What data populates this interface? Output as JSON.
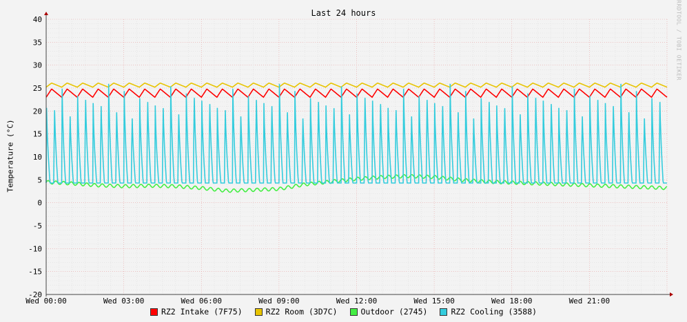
{
  "chart_data": {
    "type": "line",
    "title": "Last 24 hours",
    "ylabel": "Temperature (°C)",
    "xlabel": "",
    "watermark": "RRDTOOL / TOBI OETIKER",
    "ylim": [
      -20,
      40
    ],
    "yticks": [
      40,
      35,
      30,
      25,
      20,
      15,
      10,
      5,
      0,
      -5,
      -10,
      -15,
      -20
    ],
    "xlim_hours": [
      0,
      24
    ],
    "x_tick_hours": [
      0,
      3,
      6,
      9,
      12,
      15,
      18,
      21
    ],
    "x_tick_labels": [
      "Wed 00:00",
      "Wed 03:00",
      "Wed 06:00",
      "Wed 09:00",
      "Wed 12:00",
      "Wed 15:00",
      "Wed 18:00",
      "Wed 21:00"
    ],
    "grid": true,
    "legend_position": "bottom-center",
    "series": [
      {
        "name": "RZ2 Intake (7F75)",
        "color": "#ff0000",
        "x_hours": [
          0,
          24
        ],
        "values": [
          23.8,
          23.8
        ],
        "pattern": {
          "type": "sawtooth",
          "low": 23.0,
          "high": 24.8,
          "period_hours": 0.6
        }
      },
      {
        "name": "RZ2 Room (3D7C)",
        "color": "#e8c400",
        "x_hours": [
          0,
          24
        ],
        "values": [
          25.6,
          25.6
        ],
        "pattern": {
          "type": "sawtooth",
          "low": 25.2,
          "high": 26.1,
          "period_hours": 0.6
        }
      },
      {
        "name": "Outdoor (2745)",
        "color": "#44ee44",
        "x_hours": [
          0,
          1,
          2,
          3,
          4,
          5,
          6,
          7,
          8,
          9,
          10,
          11,
          12,
          13,
          14,
          15,
          16,
          17,
          18,
          19,
          20,
          21,
          22,
          23,
          24
        ],
        "values": [
          4.5,
          4.2,
          3.8,
          3.6,
          3.7,
          3.6,
          3.2,
          2.6,
          2.8,
          3.0,
          4.0,
          4.6,
          5.2,
          5.6,
          5.8,
          5.6,
          5.0,
          4.6,
          4.4,
          4.2,
          4.0,
          3.8,
          3.6,
          3.4,
          3.2
        ]
      },
      {
        "name": "RZ2 Cooling (3588)",
        "color": "#33ccdd",
        "x_hours": [
          0,
          24
        ],
        "values": [
          4.3,
          4.3
        ],
        "pattern": {
          "type": "spikes",
          "base": 4.3,
          "peak_min": 21.5,
          "peak_max": 27.0,
          "period_hours": 0.3
        }
      }
    ]
  }
}
